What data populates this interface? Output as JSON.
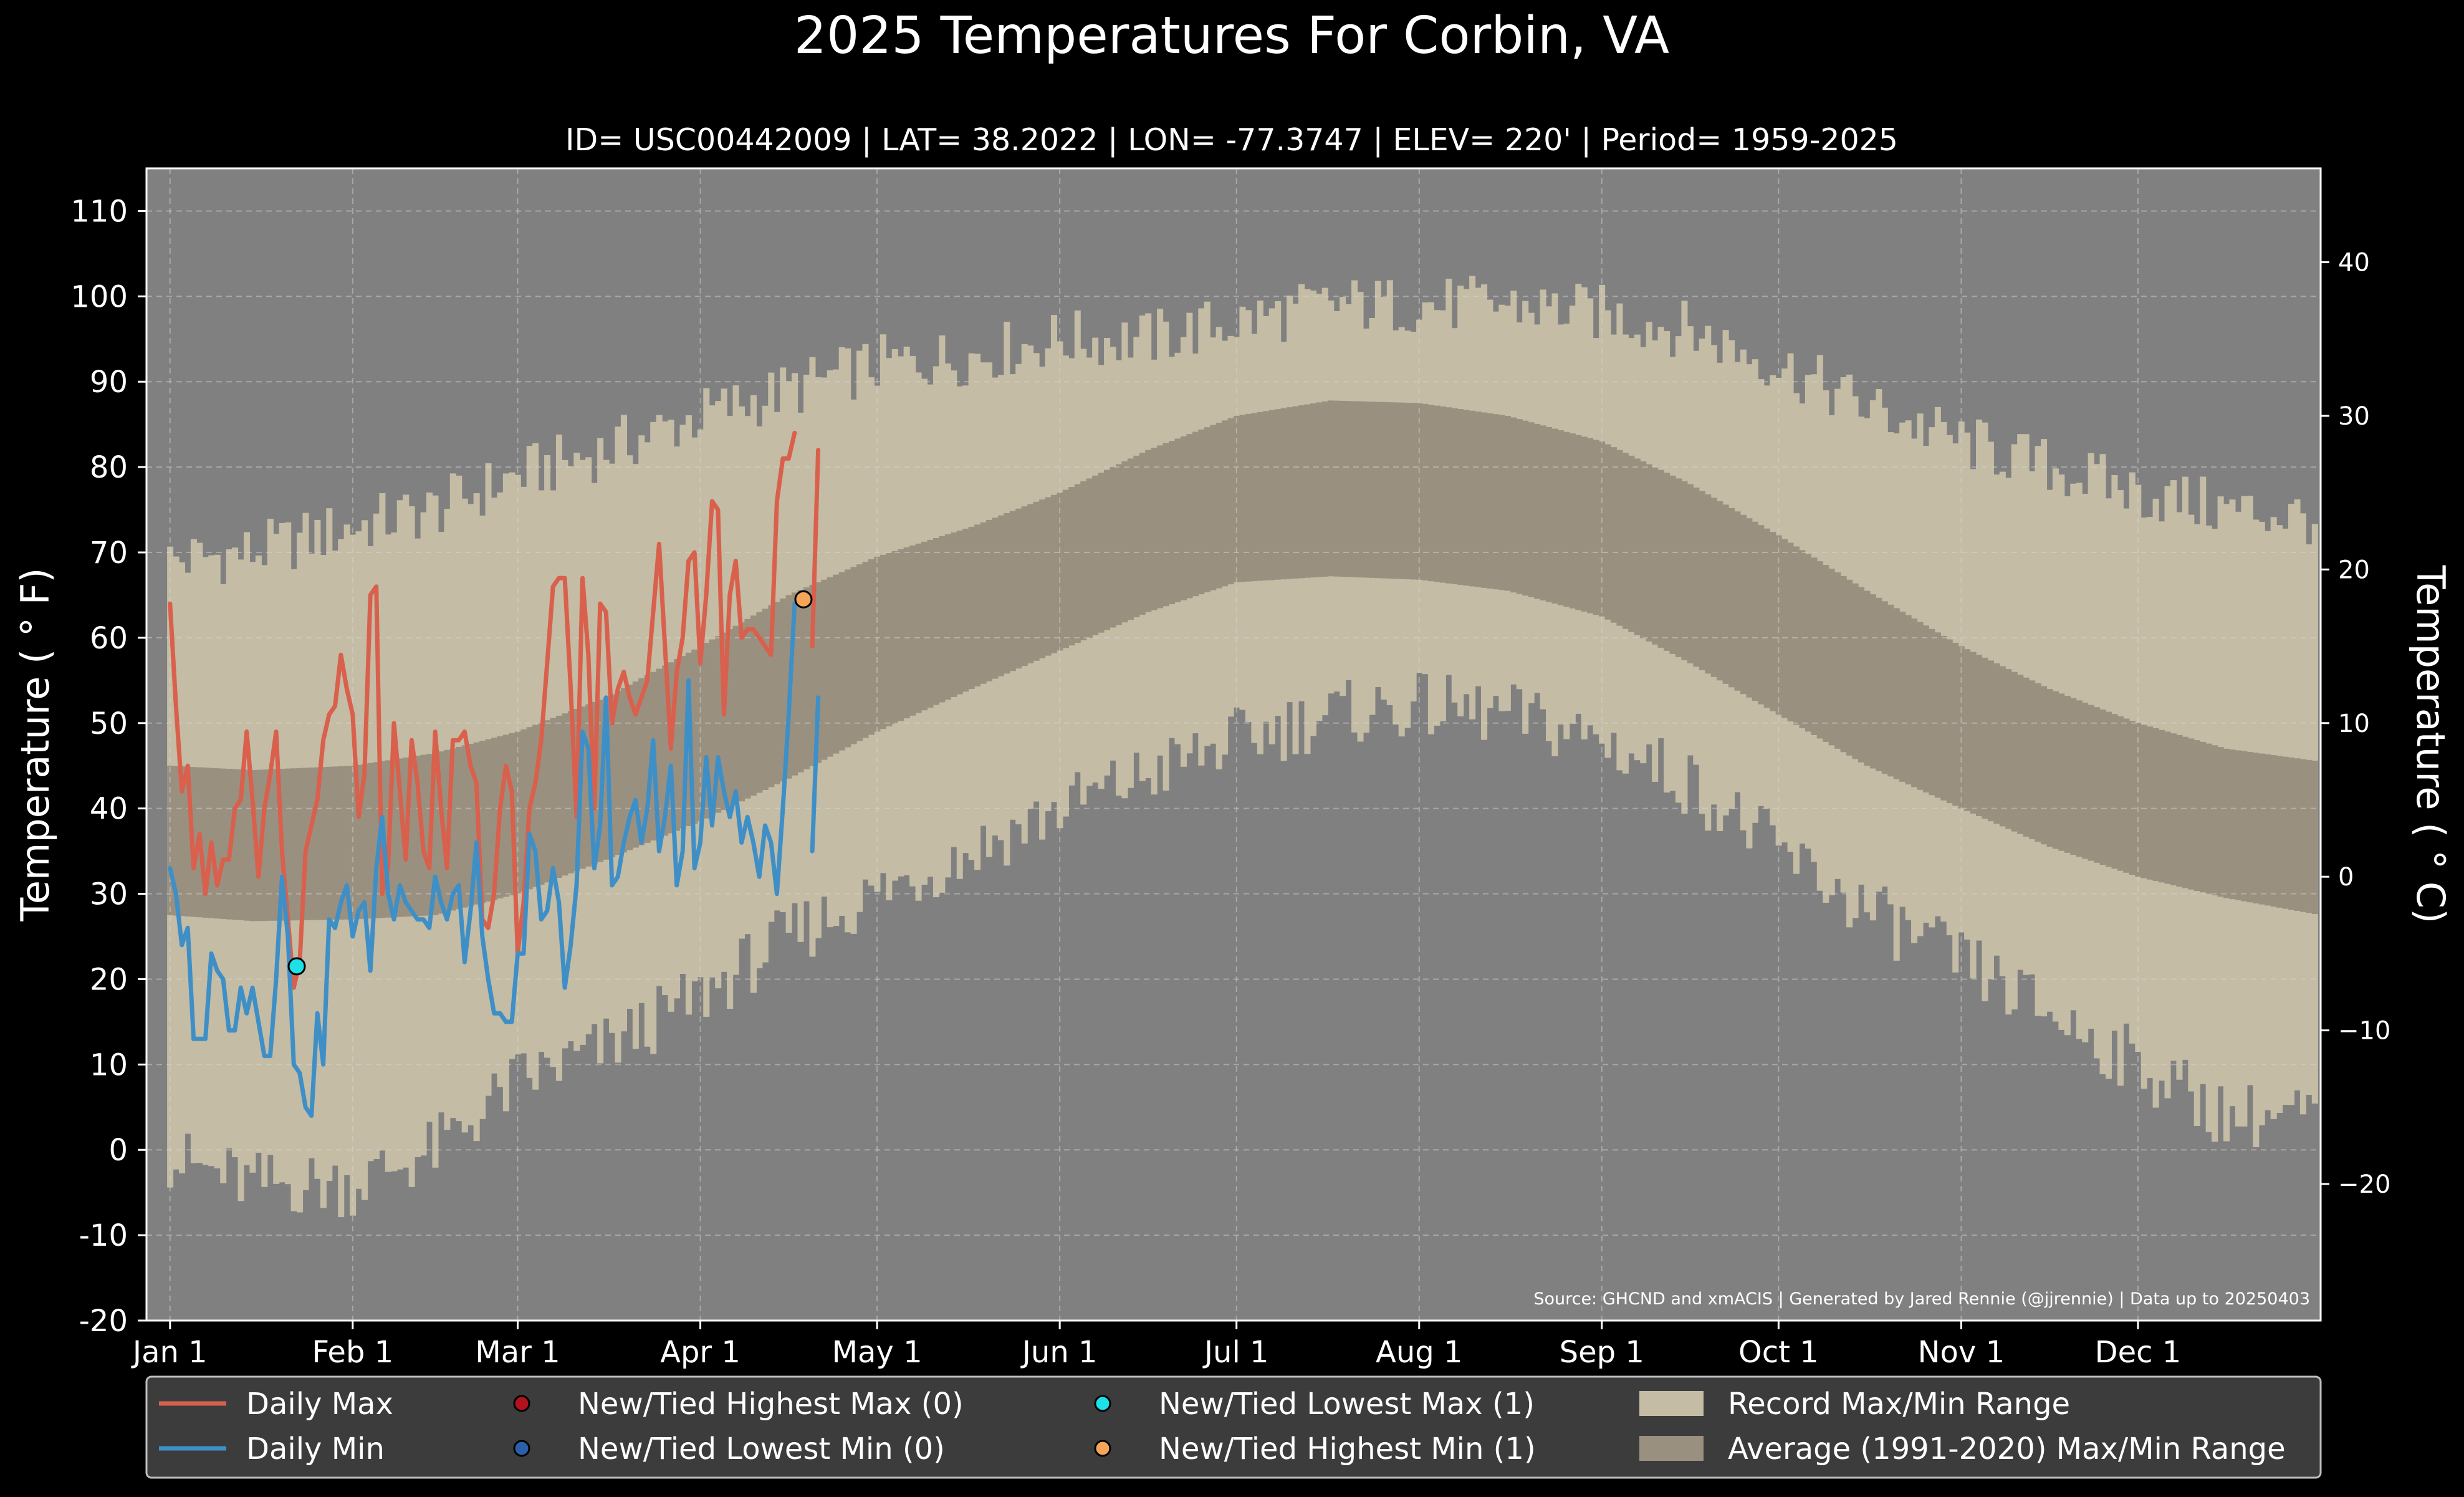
{
  "chart_data": {
    "type": "line",
    "title": "2025 Temperatures For Corbin, VA",
    "subtitle": "ID= USC00442009 | LAT= 38.2022 | LON= -77.3747 | ELEV= 220' | Period= 1959-2025",
    "ylabel_left": "Temperature ($^\\circ$F)",
    "ylabel_right": "Temperature ($^\\circ$C)",
    "ylabel_left_display": "Temperature ( ° F)",
    "ylabel_right_display": "Temperature ( ° C)",
    "source": "Source: GHCND and xmACIS | Generated by Jared Rennie (@jjrennie) | Data up to 20250403",
    "ylim_f": [
      -20,
      115
    ],
    "yticks_f": [
      "110",
      "100",
      "90",
      "80",
      "70",
      "60",
      "50",
      "40",
      "30",
      "20",
      "10",
      "0",
      "-10",
      "-20"
    ],
    "yticks_c": [
      "40",
      "30",
      "20",
      "10",
      "0",
      "−10",
      "−20"
    ],
    "xlim_days": [
      -3,
      366
    ],
    "month_labels": [
      "Jan 1",
      "Feb 1",
      "Mar 1",
      "Apr 1",
      "May 1",
      "Jun 1",
      "Jul 1",
      "Aug 1",
      "Sep 1",
      "Oct 1",
      "Nov 1",
      "Dec 1"
    ],
    "month_days": [
      1,
      32,
      60,
      91,
      121,
      152,
      182,
      213,
      244,
      274,
      305,
      335
    ],
    "grid": true,
    "legend_placement": "bottom",
    "legend": [
      {
        "label": "Daily Max",
        "kind": "line",
        "color": "#d9604c"
      },
      {
        "label": "Daily Min",
        "kind": "line",
        "color": "#3f8fc7"
      },
      {
        "label": "New/Tied Highest Max (0)",
        "kind": "dot",
        "color": "#b1121f"
      },
      {
        "label": "New/Tied Lowest Min (0)",
        "kind": "dot",
        "color": "#2b5fa8"
      },
      {
        "label": "New/Tied Lowest Max (1)",
        "kind": "dot",
        "color": "#1de0e8"
      },
      {
        "label": "New/Tied Highest Min (1)",
        "kind": "dot",
        "color": "#f5a55a"
      },
      {
        "label": "Record Max/Min Range",
        "kind": "patch",
        "color": "#c4bca4"
      },
      {
        "label": "Average (1991-2020) Max/Min Range",
        "kind": "patch",
        "color": "#9a9080"
      }
    ],
    "colors": {
      "background": "#000000",
      "plot_bg": "#808080",
      "record_band": "#c4bca4",
      "normal_band": "#9a9080",
      "daily_max": "#d9604c",
      "daily_min": "#3f8fc7",
      "legend_bg": "#3c3c3c",
      "grid": "#d8d8d8"
    },
    "daily_max": [
      64,
      52,
      42,
      45,
      33,
      37,
      30,
      36,
      31,
      34,
      34,
      40,
      41,
      49,
      41,
      32,
      40,
      44,
      49,
      35,
      27,
      19,
      22,
      35,
      38,
      41,
      48,
      51,
      52,
      58,
      54,
      51,
      39,
      44,
      65,
      66,
      30,
      33,
      50,
      42,
      34,
      48,
      43,
      35,
      33,
      49,
      40,
      33,
      48,
      48,
      49,
      45,
      43,
      27,
      26,
      30,
      40,
      45,
      42,
      23,
      29,
      40,
      43,
      48,
      57,
      66,
      67,
      67,
      54,
      39,
      67,
      58,
      40,
      64,
      63,
      50,
      54,
      56,
      53,
      51,
      53,
      55,
      63,
      71,
      59,
      47,
      56,
      60,
      69,
      70,
      57,
      65,
      76,
      75,
      51,
      65,
      69,
      60,
      61,
      61,
      60,
      59,
      58,
      76,
      81,
      81,
      84,
      null,
      null,
      59,
      82
    ],
    "daily_min": [
      33,
      30,
      24,
      26,
      13,
      13,
      13,
      23,
      21,
      20,
      14,
      14,
      19,
      16,
      19,
      15,
      11,
      11,
      20,
      32,
      25,
      10,
      9,
      5,
      4,
      16,
      10,
      27,
      26,
      29,
      31,
      25,
      28,
      29,
      21,
      33,
      39,
      30,
      27,
      31,
      29,
      28,
      27,
      27,
      26,
      32,
      29,
      27,
      30,
      31,
      22,
      28,
      36,
      25,
      20,
      16,
      16,
      15,
      15,
      23,
      23,
      37,
      35,
      27,
      28,
      33,
      29,
      19,
      24,
      31,
      49,
      47,
      33,
      38,
      53,
      31,
      32,
      36,
      39,
      41,
      36,
      40,
      48,
      35,
      39,
      45,
      31,
      35,
      55,
      33,
      36,
      46,
      38,
      46,
      42,
      39,
      42,
      36,
      39,
      36,
      32,
      38,
      36,
      30,
      40,
      51,
      64,
      null,
      null,
      35,
      53
    ],
    "record_points": [
      {
        "series": "New/Tied Lowest Max (1)",
        "day": 22.5,
        "value_f": 21.5
      },
      {
        "series": "New/Tied Highest Min (1)",
        "day": 108.5,
        "value_f": 64.5
      }
    ],
    "record_high_envelope": {
      "anchor_days": [
        1,
        15,
        32,
        46,
        60,
        75,
        91,
        106,
        121,
        137,
        152,
        167,
        182,
        198,
        213,
        228,
        244,
        259,
        274,
        289,
        305,
        320,
        335,
        350,
        366
      ],
      "values_f": [
        69,
        70,
        73,
        75,
        79,
        82,
        86,
        89,
        92,
        93,
        95,
        95,
        97,
        99,
        99,
        99,
        98,
        96,
        92,
        87,
        83,
        80,
        77,
        75,
        74
      ]
    },
    "record_low_envelope": {
      "anchor_days": [
        1,
        15,
        32,
        46,
        60,
        75,
        91,
        106,
        121,
        137,
        152,
        167,
        182,
        198,
        213,
        228,
        244,
        259,
        274,
        289,
        305,
        320,
        335,
        350,
        366
      ],
      "values_f": [
        -1,
        -4,
        -4,
        0,
        8,
        12,
        18,
        25,
        30,
        35,
        40,
        44,
        48,
        51,
        52,
        51,
        48,
        43,
        35,
        28,
        22,
        16,
        10,
        4,
        4
      ]
    },
    "normal_high": {
      "anchor_days": [
        1,
        15,
        32,
        46,
        60,
        75,
        91,
        106,
        121,
        137,
        152,
        167,
        182,
        198,
        213,
        228,
        244,
        259,
        274,
        289,
        305,
        320,
        335,
        350,
        366
      ],
      "values_f": [
        45,
        44.5,
        45,
        46.5,
        49,
        53,
        59,
        65,
        69.5,
        73,
        77,
        82,
        86,
        87.8,
        87.5,
        86,
        83,
        78,
        72,
        65.5,
        59,
        54,
        50,
        47,
        45.5
      ]
    },
    "normal_low": {
      "anchor_days": [
        1,
        15,
        32,
        46,
        60,
        75,
        91,
        106,
        121,
        137,
        152,
        167,
        182,
        198,
        213,
        228,
        244,
        259,
        274,
        289,
        305,
        320,
        335,
        350,
        366
      ],
      "values_f": [
        27.5,
        26.8,
        27,
        27.5,
        30,
        34,
        38.5,
        43.5,
        49,
        54,
        58.5,
        63,
        66.5,
        67.2,
        66.8,
        65.5,
        62.5,
        57,
        51,
        45,
        40,
        35.5,
        32,
        29.5,
        27.5
      ]
    }
  }
}
